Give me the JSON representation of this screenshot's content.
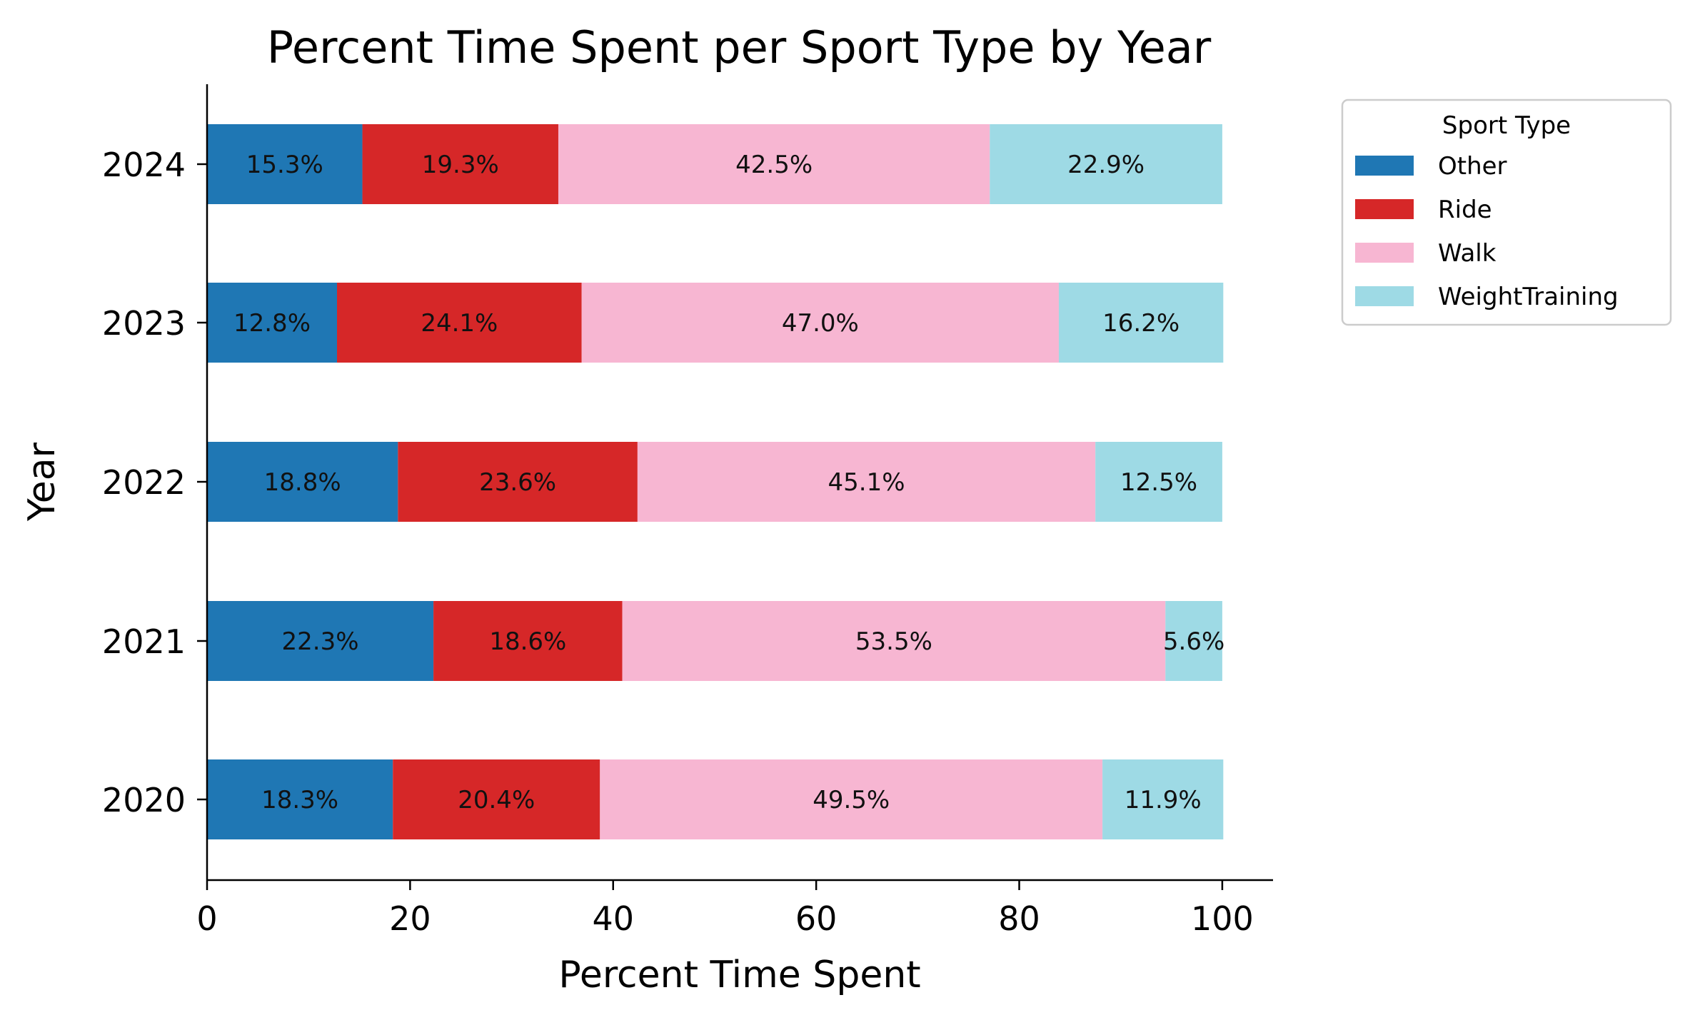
{
  "chart_data": {
    "type": "bar",
    "orientation": "horizontal",
    "stacked": true,
    "title": "Percent Time Spent per Sport Type by Year",
    "xlabel": "Percent Time Spent",
    "ylabel": "Year",
    "xlim": [
      0,
      105
    ],
    "xticks": [
      0,
      20,
      40,
      60,
      80,
      100
    ],
    "categories": [
      "2024",
      "2023",
      "2022",
      "2021",
      "2020"
    ],
    "series": [
      {
        "name": "Other",
        "color": "#1f77b4",
        "values": [
          15.3,
          12.8,
          18.8,
          22.3,
          18.3
        ]
      },
      {
        "name": "Ride",
        "color": "#d62728",
        "values": [
          19.3,
          24.1,
          23.6,
          18.6,
          20.4
        ]
      },
      {
        "name": "Walk",
        "color": "#f7b6d2",
        "values": [
          42.5,
          47.0,
          45.1,
          53.5,
          49.5
        ]
      },
      {
        "name": "WeightTraining",
        "color": "#9edae5",
        "values": [
          22.9,
          16.2,
          12.5,
          5.6,
          11.9
        ]
      }
    ],
    "data_label_format": "percent_one_decimal",
    "legend": {
      "title": "Sport Type",
      "placement": "outside-top-right"
    },
    "grid": false
  }
}
